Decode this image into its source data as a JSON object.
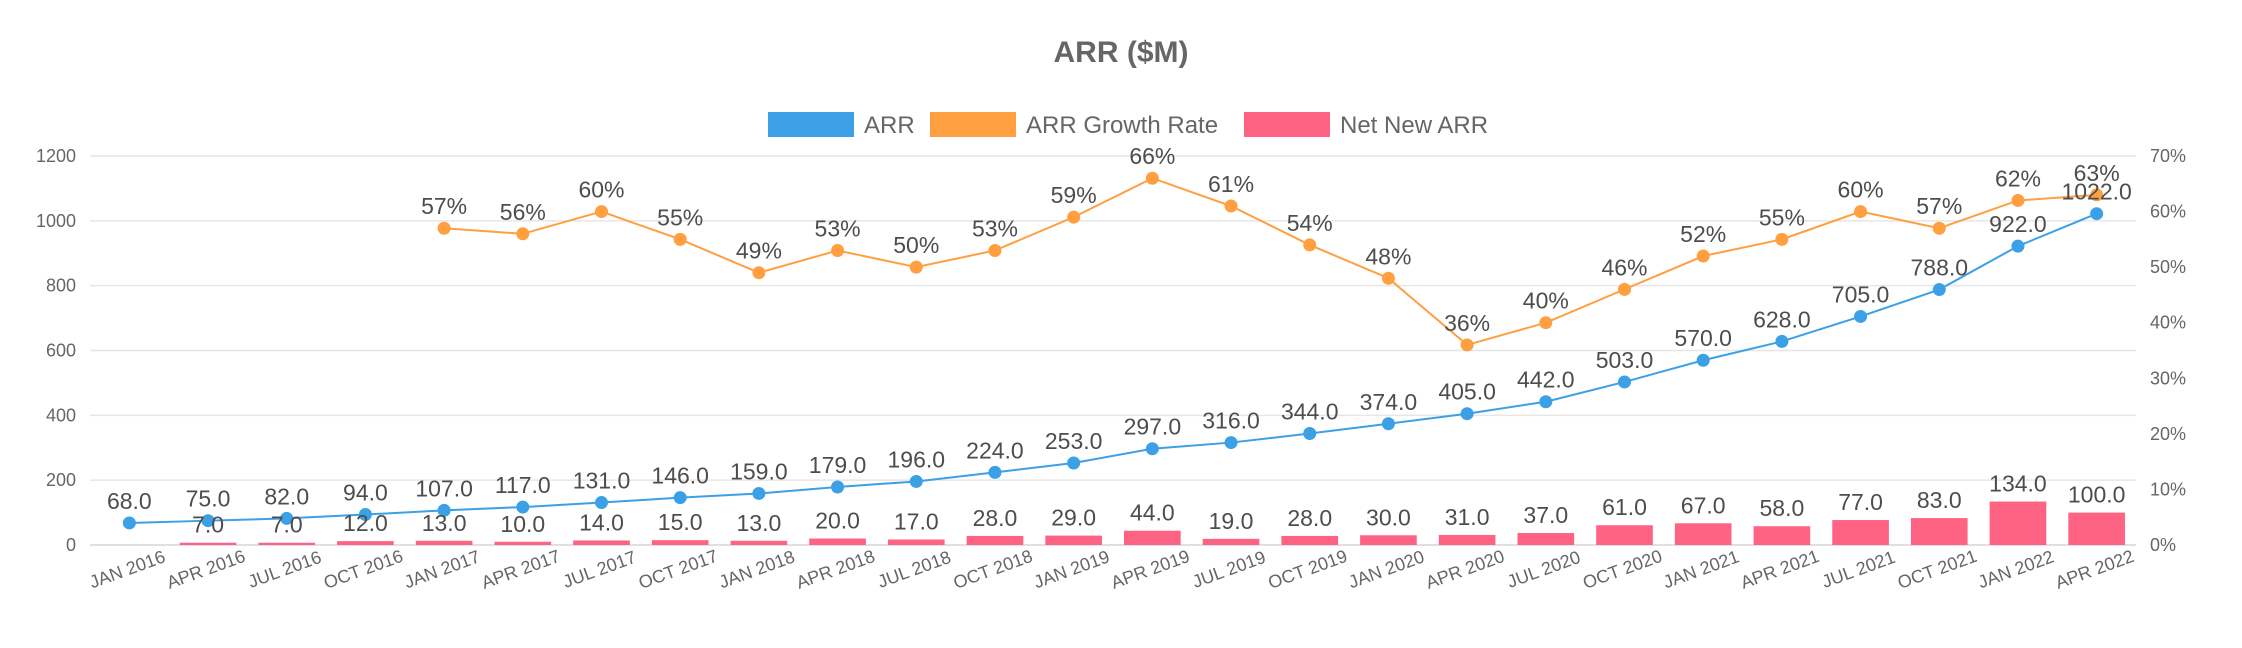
{
  "chart_data": {
    "type": "bar",
    "title": "ARR ($M)",
    "legend_position": "top-center",
    "grid": true,
    "categories": [
      "JAN 2016",
      "APR 2016",
      "JUL 2016",
      "OCT 2016",
      "JAN 2017",
      "APR 2017",
      "JUL 2017",
      "OCT 2017",
      "JAN 2018",
      "APR 2018",
      "JUL 2018",
      "OCT 2018",
      "JAN 2019",
      "APR 2019",
      "JUL 2019",
      "OCT 2019",
      "JAN 2020",
      "APR 2020",
      "JUL 2020",
      "OCT 2020",
      "JAN 2021",
      "APR 2021",
      "JUL 2021",
      "OCT 2021",
      "JAN 2022",
      "APR 2022"
    ],
    "y_left": {
      "min": 0,
      "max": 1200,
      "step": 200,
      "ticks": [
        "0",
        "200",
        "400",
        "600",
        "800",
        "1000",
        "1200"
      ]
    },
    "y_right": {
      "min": 0,
      "max": 70,
      "step": 10,
      "ticks": [
        "0%",
        "10%",
        "20%",
        "30%",
        "40%",
        "50%",
        "60%",
        "70%"
      ]
    },
    "series": [
      {
        "name": "ARR",
        "type": "line",
        "axis": "left",
        "color": "#3ba0e6",
        "values": [
          68,
          75,
          82,
          94,
          107,
          117,
          131,
          146,
          159,
          179,
          196,
          224,
          253,
          297,
          316,
          344,
          374,
          405,
          442,
          503,
          570,
          628,
          705,
          788,
          922,
          1022
        ],
        "labels": [
          "68.0",
          "75.0",
          "82.0",
          "94.0",
          "107.0",
          "117.0",
          "131.0",
          "146.0",
          "159.0",
          "179.0",
          "196.0",
          "224.0",
          "253.0",
          "297.0",
          "316.0",
          "344.0",
          "374.0",
          "405.0",
          "442.0",
          "503.0",
          "570.0",
          "628.0",
          "705.0",
          "788.0",
          "922.0",
          "1022.0"
        ]
      },
      {
        "name": "ARR Growth Rate",
        "type": "line",
        "axis": "right",
        "color": "#ff9f40",
        "values": [
          null,
          null,
          null,
          null,
          57,
          56,
          60,
          55,
          49,
          53,
          50,
          53,
          59,
          66,
          61,
          54,
          48,
          36,
          40,
          46,
          52,
          55,
          60,
          57,
          62,
          63
        ],
        "labels": [
          null,
          null,
          null,
          null,
          "57%",
          "56%",
          "60%",
          "55%",
          "49%",
          "53%",
          "50%",
          "53%",
          "59%",
          "66%",
          "61%",
          "54%",
          "48%",
          "36%",
          "40%",
          "46%",
          "52%",
          "55%",
          "60%",
          "57%",
          "62%",
          "63%"
        ]
      },
      {
        "name": "Net New ARR",
        "type": "bar",
        "axis": "left",
        "color": "#ff6384",
        "values": [
          null,
          7,
          7,
          12,
          13,
          10,
          14,
          15,
          13,
          20,
          17,
          28,
          29,
          44,
          19,
          28,
          30,
          31,
          37,
          61,
          67,
          58,
          77,
          83,
          134,
          100
        ],
        "labels": [
          null,
          "7.0",
          "7.0",
          "12.0",
          "13.0",
          "10.0",
          "14.0",
          "15.0",
          "13.0",
          "20.0",
          "17.0",
          "28.0",
          "29.0",
          "44.0",
          "19.0",
          "28.0",
          "30.0",
          "31.0",
          "37.0",
          "61.0",
          "67.0",
          "58.0",
          "77.0",
          "83.0",
          "134.0",
          "100.0"
        ]
      }
    ]
  }
}
